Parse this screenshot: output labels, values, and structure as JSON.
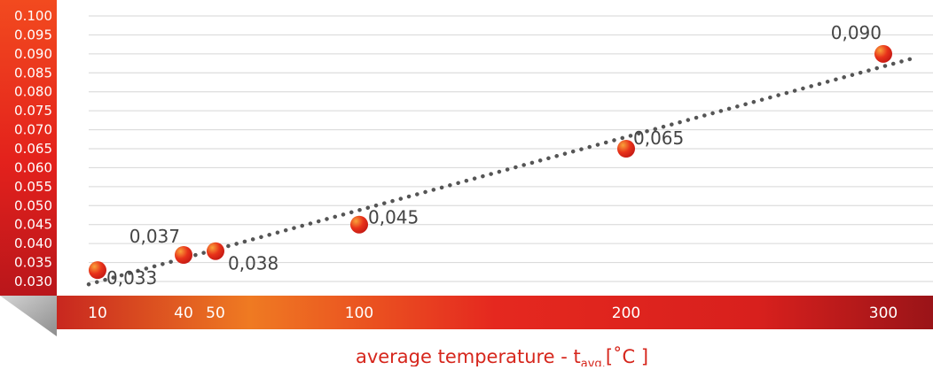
{
  "chart_data": {
    "type": "scatter",
    "title": "",
    "xlabel": "average temperature - t",
    "xlabel_subscript": "avg.",
    "xlabel_unit": "[˚C ]",
    "ylabel": "",
    "x_ticks": [
      10,
      40,
      50,
      100,
      200,
      300
    ],
    "y_ticks": [
      "0.030",
      "0.035",
      "0.040",
      "0.045",
      "0.050",
      "0.055",
      "0.060",
      "0.065",
      "0.070",
      "0.075",
      "0.080",
      "0.085",
      "0.090",
      "0.095",
      "0.100"
    ],
    "ylim": [
      0.03,
      0.1
    ],
    "grid": true,
    "trendline": "dotted",
    "points": [
      {
        "x": 10,
        "y": 0.033,
        "label": "0,033"
      },
      {
        "x": 40,
        "y": 0.037,
        "label": "0,037"
      },
      {
        "x": 50,
        "y": 0.038,
        "label": "0,038"
      },
      {
        "x": 100,
        "y": 0.045,
        "label": "0,045"
      },
      {
        "x": 200,
        "y": 0.065,
        "label": "0,065"
      },
      {
        "x": 300,
        "y": 0.09,
        "label": "0,090"
      }
    ],
    "colors": {
      "point": "#e8321a",
      "point_highlight": "#f9a23a",
      "trendline": "#555555",
      "grid": "#d6d6d6",
      "label": "#444444",
      "axis_band_start": "#c8271f",
      "axis_band_mid": "#ef7a22",
      "axis_band_end": "#9a1418",
      "xlabel": "#d6261c"
    }
  }
}
